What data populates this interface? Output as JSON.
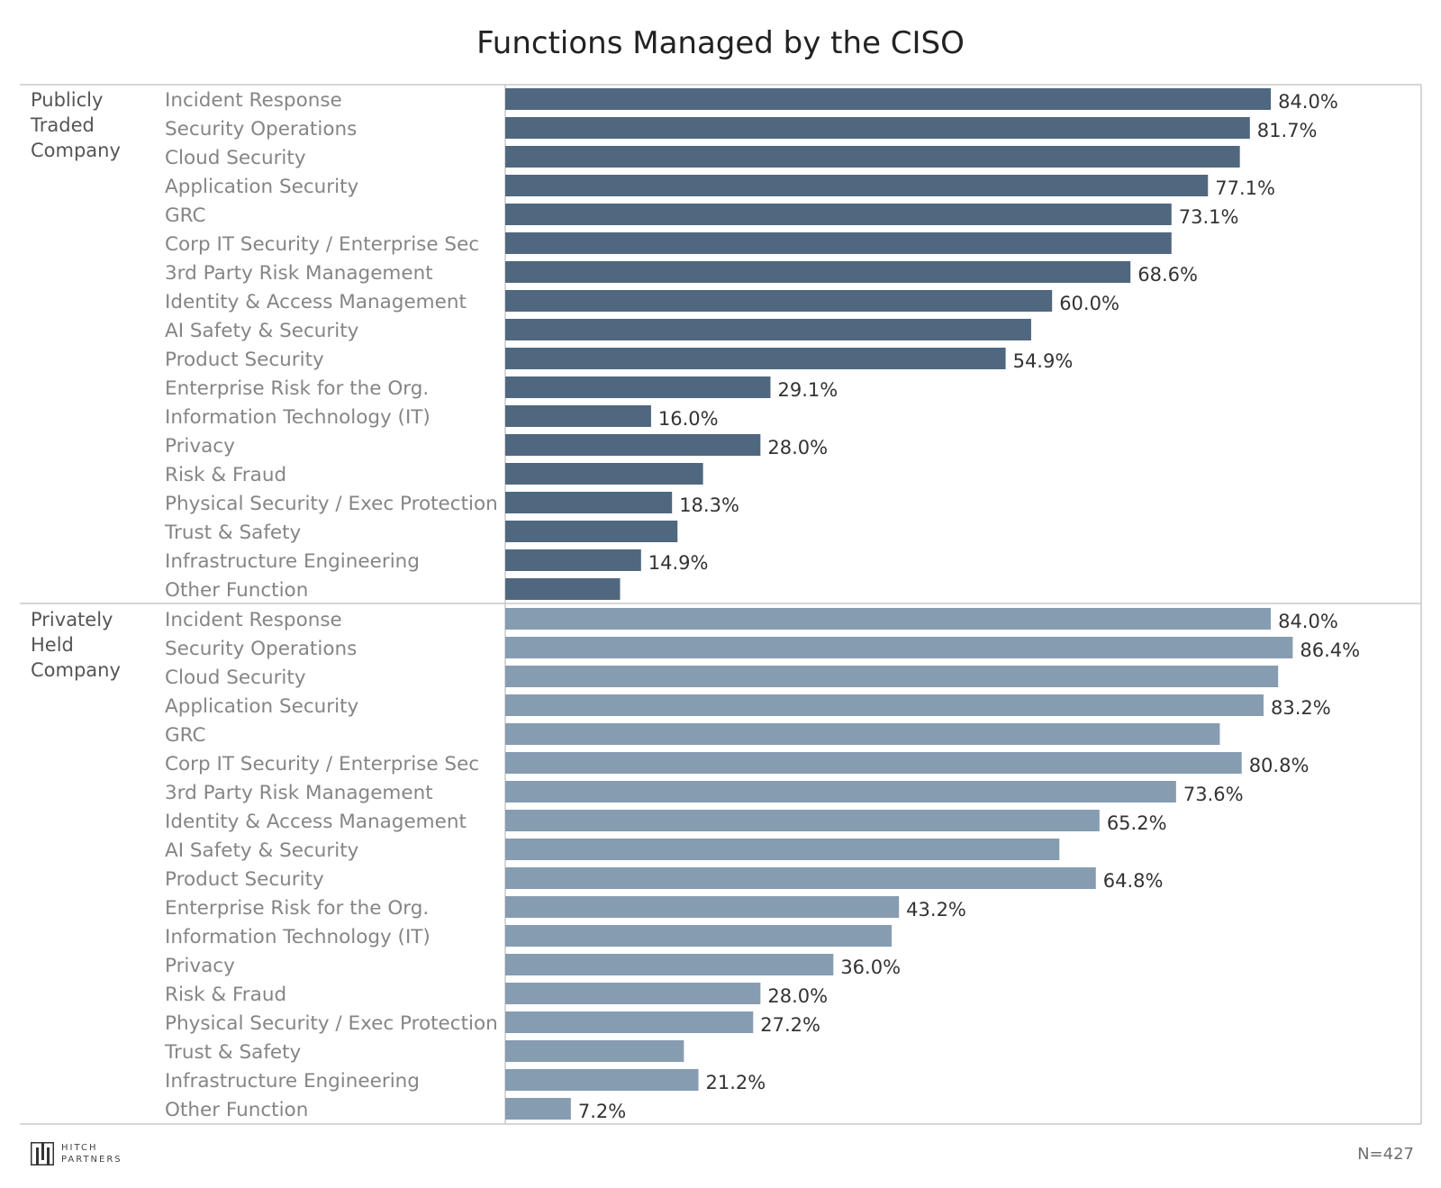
{
  "chart_data": {
    "type": "bar",
    "orientation": "horizontal",
    "title": "Functions Managed by the CISO",
    "categories": [
      "Incident Response",
      "Security Operations",
      "Cloud Security",
      "Application Security",
      "GRC",
      "Corp IT Security / Enterprise Sec",
      "3rd Party Risk Management",
      "Identity & Access Management",
      "AI Safety & Security",
      "Product Security",
      "Enterprise Risk for the Org.",
      "Information Technology (IT)",
      "Privacy",
      "Risk & Fraud",
      "Physical Security / Exec Protection",
      "Trust & Safety",
      "Infrastructure Engineering",
      "Other Function"
    ],
    "groups": [
      {
        "name": "Publicly Traded Company",
        "name_lines": [
          "Publicly",
          "Traded",
          "Company"
        ],
        "color": "#4f6880",
        "values": [
          84.0,
          81.7,
          80.6,
          77.1,
          73.1,
          73.1,
          68.6,
          60.0,
          57.7,
          54.9,
          29.1,
          16.0,
          28.0,
          21.7,
          18.3,
          18.9,
          14.9,
          12.6
        ],
        "labels": [
          "84.0%",
          "81.7%",
          null,
          "77.1%",
          "73.1%",
          null,
          "68.6%",
          "60.0%",
          null,
          "54.9%",
          "29.1%",
          "16.0%",
          "28.0%",
          null,
          "18.3%",
          null,
          "14.9%",
          null
        ]
      },
      {
        "name": "Privately Held Company",
        "name_lines": [
          "Privately",
          "Held",
          "Company"
        ],
        "color": "#869cb1",
        "values": [
          84.0,
          86.4,
          84.8,
          83.2,
          78.4,
          80.8,
          73.6,
          65.2,
          60.8,
          64.8,
          43.2,
          42.4,
          36.0,
          28.0,
          27.2,
          19.6,
          21.2,
          7.2
        ],
        "labels": [
          "84.0%",
          "86.4%",
          null,
          "83.2%",
          null,
          "80.8%",
          "73.6%",
          "65.2%",
          null,
          "64.8%",
          "43.2%",
          null,
          "36.0%",
          "28.0%",
          "27.2%",
          null,
          "21.2%",
          "7.2%"
        ]
      }
    ],
    "xlim": [
      0,
      100
    ]
  },
  "footnote": "N=427",
  "logo": {
    "line1": "HITCH",
    "line2": "PARTNERS"
  }
}
